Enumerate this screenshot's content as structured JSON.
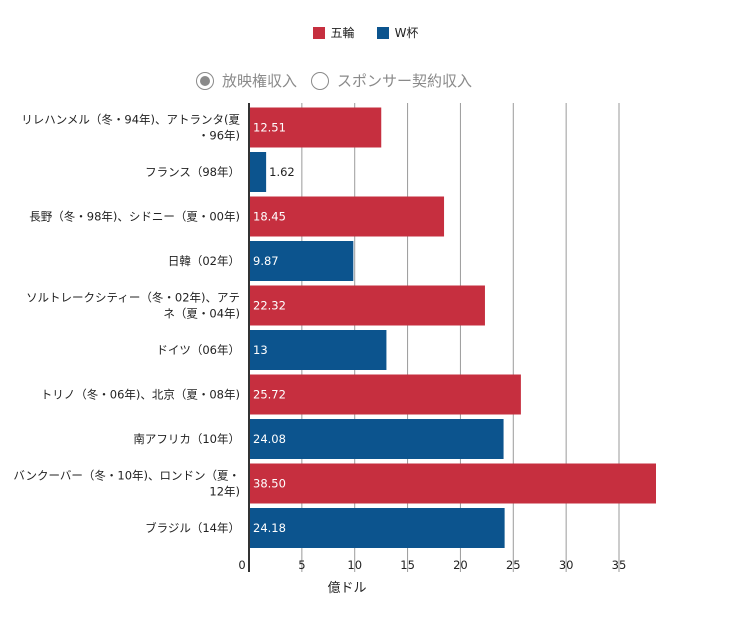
{
  "legend": [
    {
      "label": "五輪",
      "color": "#c62f3f"
    },
    {
      "label": "W杯",
      "color": "#0c548e"
    }
  ],
  "toggle": {
    "options": [
      {
        "label": "放映権収入",
        "selected": true
      },
      {
        "label": "スポンサー契約収入",
        "selected": false
      }
    ]
  },
  "chart_data": {
    "type": "bar",
    "orientation": "horizontal",
    "xlabel": "億ドル",
    "xlim": [
      0,
      38.5
    ],
    "xticks": [
      0,
      5,
      10,
      15,
      20,
      25,
      30,
      35
    ],
    "grid": true,
    "legend_position": "top",
    "categories": [
      {
        "label_lines": [
          "リレハンメル（冬・94年)、アトランタ(夏",
          "・96年)"
        ],
        "value": 12.51,
        "display": "12.51",
        "series": "五輪"
      },
      {
        "label_lines": [
          "フランス（98年）"
        ],
        "value": 1.62,
        "display": "1.62",
        "series": "W杯"
      },
      {
        "label_lines": [
          "長野（冬・98年)、シドニー（夏・00年)"
        ],
        "value": 18.45,
        "display": "18.45",
        "series": "五輪"
      },
      {
        "label_lines": [
          "日韓（02年）"
        ],
        "value": 9.87,
        "display": "9.87",
        "series": "W杯"
      },
      {
        "label_lines": [
          "ソルトレークシティー（冬・02年)、アテ",
          "ネ（夏・04年)"
        ],
        "value": 22.32,
        "display": "22.32",
        "series": "五輪"
      },
      {
        "label_lines": [
          "ドイツ（06年）"
        ],
        "value": 13,
        "display": "13",
        "series": "W杯"
      },
      {
        "label_lines": [
          "トリノ（冬・06年)、北京（夏・08年)"
        ],
        "value": 25.72,
        "display": "25.72",
        "series": "五輪"
      },
      {
        "label_lines": [
          "南アフリカ（10年）"
        ],
        "value": 24.08,
        "display": "24.08",
        "series": "W杯"
      },
      {
        "label_lines": [
          "バンクーバー（冬・10年)、ロンドン（夏・",
          "12年)"
        ],
        "value": 38.5,
        "display": "38.50",
        "series": "五輪"
      },
      {
        "label_lines": [
          "ブラジル（14年）"
        ],
        "value": 24.18,
        "display": "24.18",
        "series": "W杯"
      }
    ]
  }
}
